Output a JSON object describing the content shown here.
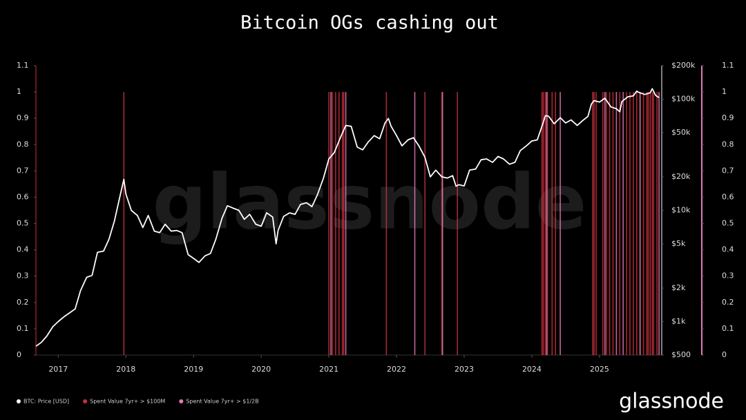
{
  "chart_data": {
    "type": "line",
    "title": "Bitcoin OGs cashing out",
    "watermark": "glassnode",
    "logo": "glassnode",
    "xlim": [
      2016.67,
      2025.92
    ],
    "xticks": [
      2017,
      2018,
      2019,
      2020,
      2021,
      2022,
      2023,
      2024,
      2025
    ],
    "ylim": [
      0,
      1.1
    ],
    "yticks": [
      0,
      0.1,
      0.2,
      0.3,
      0.4,
      0.5,
      0.6,
      0.7,
      0.8,
      0.9,
      1,
      1.1
    ],
    "y2lim": [
      500,
      200000
    ],
    "y2log": true,
    "y2ticks": [
      {
        "value": 500,
        "label": "$500"
      },
      {
        "value": 1000,
        "label": "$1k"
      },
      {
        "value": 2000,
        "label": "$2k"
      },
      {
        "value": 5000,
        "label": "$5k"
      },
      {
        "value": 10000,
        "label": "$10k"
      },
      {
        "value": 20000,
        "label": "$20k"
      },
      {
        "value": 50000,
        "label": "$50k"
      },
      {
        "value": 100000,
        "label": "$100k"
      },
      {
        "value": 200000,
        "label": "$200k"
      }
    ],
    "series": [
      {
        "name": "BTC: Price [USD]",
        "color": "#ffffff",
        "axis": "y2",
        "type": "line",
        "x": [
          2016.67,
          2016.75,
          2016.83,
          2016.92,
          2017.0,
          2017.08,
          2017.17,
          2017.25,
          2017.33,
          2017.42,
          2017.5,
          2017.58,
          2017.67,
          2017.75,
          2017.83,
          2017.92,
          2017.97,
          2018.0,
          2018.08,
          2018.17,
          2018.25,
          2018.33,
          2018.42,
          2018.5,
          2018.58,
          2018.67,
          2018.75,
          2018.83,
          2018.92,
          2019.0,
          2019.08,
          2019.17,
          2019.25,
          2019.33,
          2019.42,
          2019.5,
          2019.58,
          2019.67,
          2019.75,
          2019.83,
          2019.92,
          2020.0,
          2020.08,
          2020.17,
          2020.22,
          2020.25,
          2020.33,
          2020.42,
          2020.5,
          2020.58,
          2020.67,
          2020.75,
          2020.83,
          2020.92,
          2021.0,
          2021.08,
          2021.17,
          2021.25,
          2021.33,
          2021.42,
          2021.5,
          2021.58,
          2021.67,
          2021.75,
          2021.83,
          2021.88,
          2021.92,
          2022.0,
          2022.08,
          2022.17,
          2022.25,
          2022.33,
          2022.42,
          2022.5,
          2022.58,
          2022.67,
          2022.75,
          2022.83,
          2022.88,
          2022.92,
          2023.0,
          2023.08,
          2023.17,
          2023.25,
          2023.33,
          2023.42,
          2023.5,
          2023.58,
          2023.67,
          2023.75,
          2023.83,
          2023.92,
          2024.0,
          2024.08,
          2024.17,
          2024.2,
          2024.25,
          2024.33,
          2024.42,
          2024.5,
          2024.58,
          2024.67,
          2024.75,
          2024.83,
          2024.88,
          2024.92,
          2025.0,
          2025.08,
          2025.17,
          2025.25,
          2025.3,
          2025.33,
          2025.42,
          2025.5,
          2025.55,
          2025.58,
          2025.67,
          2025.75,
          2025.78,
          2025.83,
          2025.88
        ],
        "values": [
          600,
          650,
          740,
          900,
          1000,
          1100,
          1200,
          1300,
          1900,
          2500,
          2600,
          4200,
          4300,
          5500,
          8000,
          14000,
          19000,
          14000,
          10000,
          9000,
          7000,
          9000,
          6500,
          6300,
          7500,
          6500,
          6600,
          6300,
          4000,
          3700,
          3400,
          3900,
          4100,
          5500,
          8500,
          11000,
          10500,
          10000,
          8300,
          9200,
          7500,
          7200,
          9500,
          8700,
          5000,
          6600,
          8800,
          9500,
          9200,
          11300,
          11700,
          10800,
          13800,
          19500,
          29000,
          33000,
          45000,
          58000,
          57000,
          37000,
          35000,
          41000,
          47000,
          44000,
          61000,
          67000,
          57000,
          47000,
          38000,
          43000,
          45000,
          38000,
          30000,
          20000,
          23000,
          20000,
          19500,
          20500,
          16500,
          17000,
          16600,
          23000,
          23500,
          28500,
          29000,
          27000,
          30500,
          29000,
          26000,
          27000,
          34500,
          38000,
          42000,
          43000,
          62000,
          71000,
          70000,
          60000,
          68000,
          61000,
          65000,
          58000,
          64000,
          70000,
          90000,
          97000,
          94000,
          102000,
          85000,
          82000,
          77000,
          95000,
          105000,
          107000,
          118000,
          115000,
          110000,
          114000,
          124000,
          108000,
          103000
        ]
      },
      {
        "name": "Spent Value 7yr+ > $100M",
        "color": "#c8303c",
        "type": "spike",
        "x": [
          2017.97,
          2021.0,
          2021.05,
          2021.1,
          2021.15,
          2021.2,
          2021.22,
          2021.85,
          2022.42,
          2022.67,
          2022.9,
          2024.15,
          2024.17,
          2024.2,
          2024.23,
          2024.3,
          2024.35,
          2024.9,
          2024.92,
          2024.95,
          2025.05,
          2025.1,
          2025.15,
          2025.2,
          2025.3,
          2025.4,
          2025.45,
          2025.5,
          2025.55,
          2025.6,
          2025.65,
          2025.7,
          2025.72,
          2025.75,
          2025.78,
          2025.8,
          2025.85
        ],
        "values": [
          1,
          1,
          1,
          1,
          1,
          1,
          1,
          1,
          1,
          1,
          1,
          1,
          1,
          1,
          1,
          1,
          1,
          1,
          1,
          1,
          1,
          1,
          1,
          1,
          1,
          1,
          1,
          1,
          1,
          1,
          1,
          1,
          1,
          1,
          1,
          1,
          1
        ]
      },
      {
        "name": "Spent Value 7yr+ > $1/2B",
        "color": "#e27ab8",
        "type": "spike",
        "x": [
          2021.03,
          2021.25,
          2022.27,
          2022.68,
          2024.22,
          2024.42,
          2025.08,
          2025.25,
          2025.35,
          2025.6,
          2025.88
        ],
        "values": [
          1,
          1,
          1,
          1,
          1,
          1,
          1,
          1,
          1,
          1,
          1
        ]
      }
    ]
  }
}
